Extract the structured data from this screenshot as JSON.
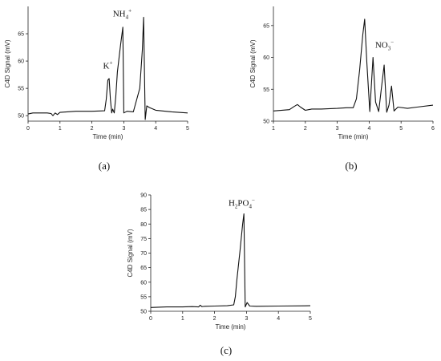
{
  "panels": [
    {
      "label": "(a)"
    },
    {
      "label": "(b)"
    },
    {
      "label": "(c)"
    }
  ],
  "chart_data": [
    {
      "type": "line",
      "xlabel": "Time (min)",
      "ylabel": "C4D Signal (mV)",
      "xlim": [
        0,
        5
      ],
      "ylim": [
        49,
        70
      ],
      "xticks": [
        0,
        1,
        2,
        3,
        4,
        5
      ],
      "yticks": [
        50,
        55,
        60,
        65
      ],
      "annotations": [
        {
          "base": "K",
          "sup": "+",
          "x": 2.5,
          "y": 58.6
        },
        {
          "base": "NH",
          "sub": "4",
          "sup": "+",
          "x": 2.95,
          "y": 68.2
        }
      ],
      "series": [
        {
          "x": [
            0,
            0.15,
            0.6,
            0.72,
            0.78,
            0.85,
            0.92,
            1.0,
            1.5,
            2.0,
            2.4,
            2.45,
            2.5,
            2.54,
            2.58,
            2.62,
            2.65,
            2.7,
            2.75,
            2.8,
            2.9,
            2.97,
            3.0,
            3.1,
            3.3,
            3.5,
            3.58,
            3.62,
            3.67,
            3.72,
            3.8,
            4.0,
            4.5,
            5.0
          ],
          "y": [
            50.3,
            50.5,
            50.5,
            50.4,
            50.0,
            50.5,
            50.2,
            50.6,
            50.8,
            50.8,
            50.9,
            53.0,
            56.5,
            56.8,
            53.0,
            50.5,
            51.2,
            50.5,
            53.5,
            58.0,
            63.0,
            66.2,
            50.5,
            50.8,
            50.7,
            55.0,
            62.0,
            68.0,
            49.3,
            51.8,
            51.5,
            51.0,
            50.7,
            50.5
          ]
        }
      ]
    },
    {
      "type": "line",
      "xlabel": "Time (min)",
      "ylabel": "C4D Signal (mV)",
      "xlim": [
        1,
        6
      ],
      "ylim": [
        50,
        68
      ],
      "xticks": [
        1,
        2,
        3,
        4,
        5,
        6
      ],
      "yticks": [
        50,
        55,
        60,
        65
      ],
      "annotations": [
        {
          "base": "NO",
          "sub": "3",
          "sup": "−",
          "x": 4.48,
          "y": 61.5
        }
      ],
      "series": [
        {
          "x": [
            1.0,
            1.5,
            1.65,
            1.75,
            1.85,
            2.0,
            2.2,
            2.5,
            3.0,
            3.3,
            3.5,
            3.6,
            3.7,
            3.8,
            3.86,
            3.93,
            4.02,
            4.12,
            4.2,
            4.3,
            4.38,
            4.47,
            4.55,
            4.62,
            4.7,
            4.78,
            4.9,
            5.2,
            5.5,
            6.0
          ],
          "y": [
            51.6,
            51.8,
            52.3,
            52.6,
            52.2,
            51.7,
            51.9,
            51.9,
            52.0,
            52.1,
            52.1,
            53.5,
            58.0,
            63.5,
            66.0,
            59.0,
            51.5,
            60.0,
            53.0,
            51.5,
            55.0,
            58.8,
            51.4,
            52.5,
            55.5,
            51.6,
            52.2,
            52.0,
            52.2,
            52.5
          ]
        }
      ]
    },
    {
      "type": "line",
      "xlabel": "Time (min)",
      "ylabel": "C4D Signal (mV)",
      "xlim": [
        0,
        5
      ],
      "ylim": [
        50,
        90
      ],
      "xticks": [
        0,
        1,
        2,
        3,
        4,
        5
      ],
      "yticks": [
        50,
        55,
        60,
        65,
        70,
        75,
        80,
        85,
        90
      ],
      "annotations": [
        {
          "base": "H",
          "sub": "2",
          "mid": "PO",
          "sub2": "4",
          "sup": "−",
          "x": 2.85,
          "y": 86.3
        }
      ],
      "series": [
        {
          "x": [
            0,
            0.5,
            1.0,
            1.3,
            1.5,
            1.55,
            1.6,
            1.7,
            2.0,
            2.4,
            2.6,
            2.65,
            2.7,
            2.8,
            2.88,
            2.92,
            2.96,
            3.02,
            3.1,
            3.3,
            4.0,
            5.0
          ],
          "y": [
            51.3,
            51.5,
            51.5,
            51.6,
            51.5,
            52.1,
            51.6,
            51.7,
            51.8,
            51.9,
            52.2,
            55.0,
            61.0,
            71.0,
            80.0,
            83.5,
            51.5,
            53.0,
            51.8,
            51.7,
            51.8,
            51.9
          ]
        }
      ]
    }
  ]
}
